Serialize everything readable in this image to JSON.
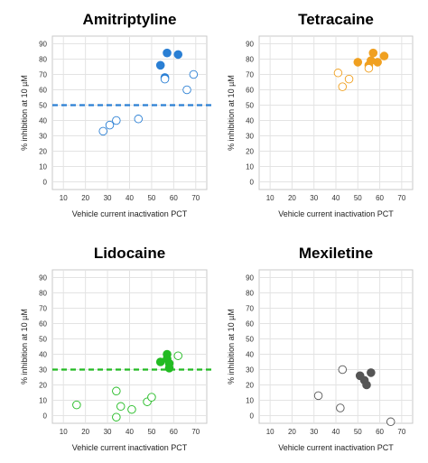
{
  "chart_data": [
    {
      "type": "scatter",
      "title": "Amitriptyline",
      "xlabel": "Vehicle current inactivation PCT",
      "ylabel": "% inhibition at 10 µM",
      "xlim": [
        5,
        75
      ],
      "ylim": [
        -5,
        95
      ],
      "xticks": [
        10,
        20,
        30,
        40,
        50,
        60,
        70
      ],
      "yticks": [
        0,
        10,
        20,
        30,
        40,
        50,
        60,
        70,
        80,
        90
      ],
      "grid": true,
      "color": "#2a7fd4",
      "threshold": 50,
      "series": [
        {
          "filled": true,
          "x": [
            54,
            57,
            62,
            56
          ],
          "y": [
            76,
            84,
            83,
            68
          ]
        },
        {
          "filled": false,
          "x": [
            28,
            31,
            34,
            44,
            56,
            66,
            69
          ],
          "y": [
            33,
            37,
            40,
            41,
            67,
            60,
            70
          ]
        }
      ]
    },
    {
      "type": "scatter",
      "title": "Tetracaine",
      "xlabel": "Vehicle current inactivation PCT",
      "ylabel": "% inhibition at 10 µM",
      "xlim": [
        5,
        75
      ],
      "ylim": [
        -5,
        95
      ],
      "xticks": [
        10,
        20,
        30,
        40,
        50,
        60,
        70
      ],
      "yticks": [
        0,
        10,
        20,
        30,
        40,
        50,
        60,
        70,
        80,
        90
      ],
      "grid": true,
      "color": "#f0a020",
      "threshold": null,
      "series": [
        {
          "filled": true,
          "x": [
            50,
            55,
            56,
            57,
            59,
            62
          ],
          "y": [
            78,
            76,
            79,
            84,
            78,
            82
          ]
        },
        {
          "filled": false,
          "x": [
            41,
            43,
            46,
            55
          ],
          "y": [
            71,
            62,
            67,
            74
          ]
        }
      ]
    },
    {
      "type": "scatter",
      "title": "Lidocaine",
      "xlabel": "Vehicle current inactivation PCT",
      "ylabel": "% inhibition at 10 µM",
      "xlim": [
        5,
        75
      ],
      "ylim": [
        -5,
        95
      ],
      "xticks": [
        10,
        20,
        30,
        40,
        50,
        60,
        70
      ],
      "yticks": [
        0,
        10,
        20,
        30,
        40,
        50,
        60,
        70,
        80,
        90
      ],
      "grid": true,
      "color": "#22bb22",
      "threshold": 30,
      "series": [
        {
          "filled": true,
          "x": [
            54,
            57,
            57,
            58,
            58
          ],
          "y": [
            35,
            40,
            37,
            34,
            31
          ]
        },
        {
          "filled": false,
          "x": [
            16,
            34,
            34,
            36,
            41,
            48,
            50,
            62
          ],
          "y": [
            7,
            16,
            -1,
            6,
            4,
            9,
            12,
            39
          ]
        }
      ]
    },
    {
      "type": "scatter",
      "title": "Mexiletine",
      "xlabel": "Vehicle current inactivation PCT",
      "ylabel": "% inhibition at 10 µM",
      "xlim": [
        5,
        75
      ],
      "ylim": [
        -5,
        95
      ],
      "xticks": [
        10,
        20,
        30,
        40,
        50,
        60,
        70
      ],
      "yticks": [
        0,
        10,
        20,
        30,
        40,
        50,
        60,
        70,
        80,
        90
      ],
      "grid": true,
      "color": "#555555",
      "threshold": null,
      "series": [
        {
          "filled": true,
          "x": [
            51,
            53,
            54,
            56
          ],
          "y": [
            26,
            23,
            20,
            28
          ]
        },
        {
          "filled": false,
          "x": [
            32,
            43,
            42,
            65
          ],
          "y": [
            13,
            30,
            5,
            -4
          ]
        }
      ]
    }
  ]
}
